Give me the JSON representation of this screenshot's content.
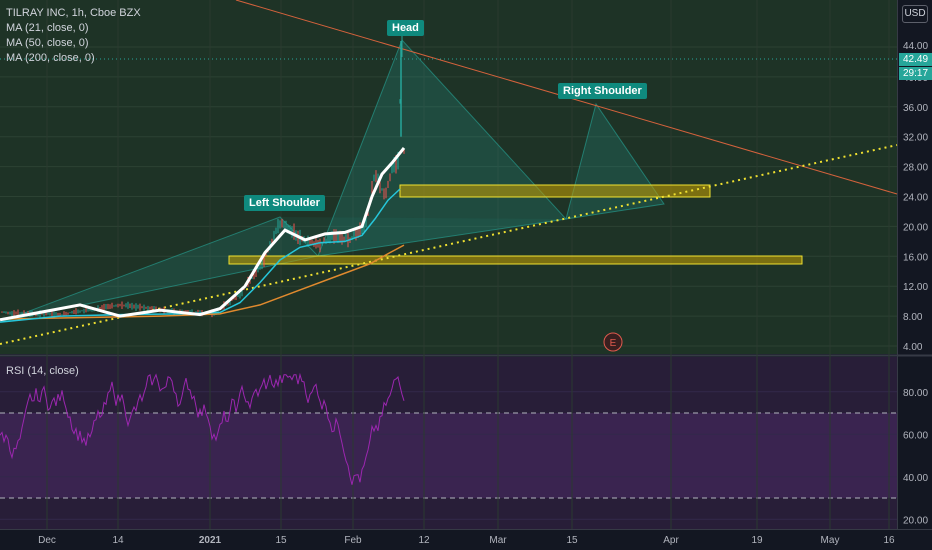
{
  "legend": {
    "title": "TILRAY INC, 1h, Cboe BZX",
    "ma21": "MA (21, close, 0)",
    "ma50": "MA (50, close, 0)",
    "ma200": "MA (200, close, 0)",
    "rsi": "RSI (14, close)"
  },
  "currency": "USD",
  "annotations": {
    "head": "Head",
    "left_shoulder": "Left Shoulder",
    "right_shoulder": "Right Shoulder",
    "earnings": "E"
  },
  "price_badges": {
    "last_price": "42.49",
    "countdown": "29:17",
    "high": "44.00"
  },
  "price_axis": [
    "44.00",
    "40.00",
    "36.00",
    "32.00",
    "28.00",
    "24.00",
    "20.00",
    "16.00",
    "12.00",
    "8.00",
    "4.00"
  ],
  "rsi_axis": [
    "80.00",
    "60.00",
    "40.00",
    "20.00"
  ],
  "time_axis": [
    "Dec",
    "14",
    "2021",
    "15",
    "Feb",
    "12",
    "Mar",
    "15",
    "Apr",
    "19",
    "May",
    "16"
  ],
  "colors": {
    "background": "#131722",
    "price_pane": "#1e3326",
    "rsi_pane": "#2a1f3d",
    "rsi_band": "#3b2554",
    "rsi_line": "#9c27b0",
    "ma21": "#ffffff",
    "ma50": "#26c6da",
    "ma200": "#e08a2e",
    "trendline": "#d4623c",
    "support": "#f0e130",
    "zone": "#c8a000",
    "pattern": "#26a69a",
    "label_bg": "#0f8a7e"
  }
}
